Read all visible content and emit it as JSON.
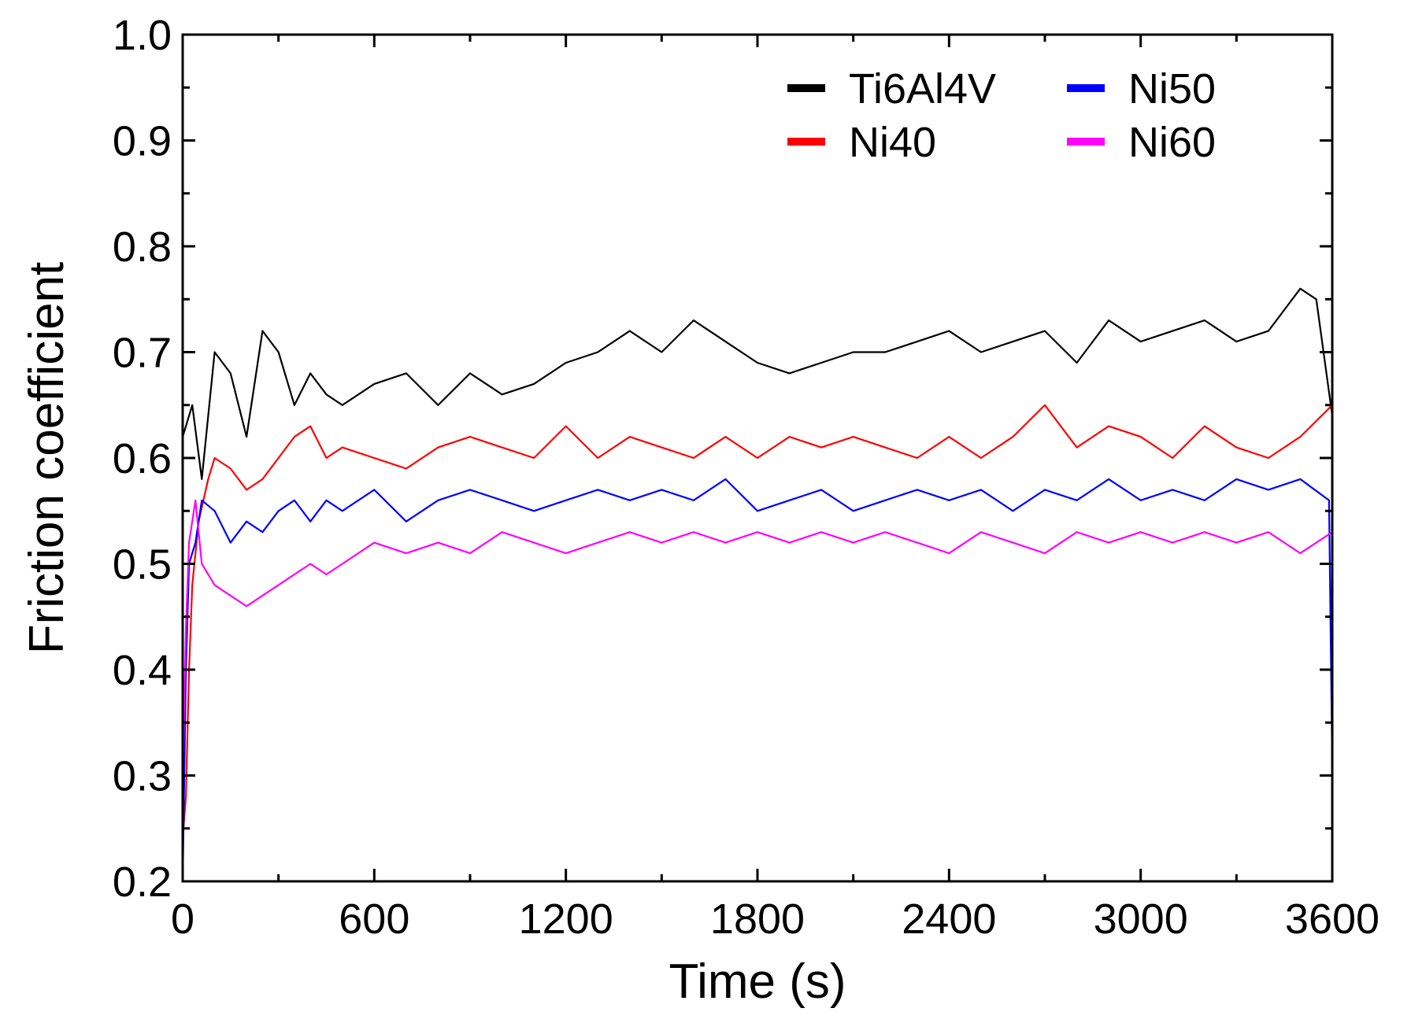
{
  "chart_data": {
    "type": "line",
    "title": "",
    "xlabel": "Time (s)",
    "ylabel": "Friction coefficient",
    "xlim": [
      0,
      3600
    ],
    "ylim": [
      0.2,
      1.0
    ],
    "xticks": [
      0,
      600,
      1200,
      1800,
      2400,
      3000,
      3600
    ],
    "xtick_labels": [
      "0",
      "600",
      "1200",
      "1800",
      "2400",
      "3000",
      "3600"
    ],
    "yticks": [
      0.2,
      0.3,
      0.4,
      0.5,
      0.6,
      0.7,
      0.8,
      0.9,
      1.0
    ],
    "ytick_labels": [
      "0.2",
      "0.3",
      "0.4",
      "0.5",
      "0.6",
      "0.7",
      "0.8",
      "0.9",
      "1.0"
    ],
    "grid": false,
    "legend_position": "top-right",
    "series": [
      {
        "name": "Ti6Al4V",
        "color": "#000000",
        "x": [
          0,
          30,
          60,
          100,
          150,
          200,
          250,
          300,
          350,
          400,
          450,
          500,
          600,
          700,
          800,
          900,
          1000,
          1100,
          1200,
          1300,
          1400,
          1500,
          1600,
          1700,
          1800,
          1900,
          2000,
          2100,
          2200,
          2300,
          2400,
          2500,
          2600,
          2700,
          2800,
          2900,
          3000,
          3100,
          3200,
          3300,
          3400,
          3500,
          3550,
          3600
        ],
        "y": [
          0.62,
          0.65,
          0.58,
          0.7,
          0.68,
          0.62,
          0.72,
          0.7,
          0.65,
          0.68,
          0.66,
          0.65,
          0.67,
          0.68,
          0.65,
          0.68,
          0.66,
          0.67,
          0.69,
          0.7,
          0.72,
          0.7,
          0.73,
          0.71,
          0.69,
          0.68,
          0.69,
          0.7,
          0.7,
          0.71,
          0.72,
          0.7,
          0.71,
          0.72,
          0.69,
          0.73,
          0.71,
          0.72,
          0.73,
          0.71,
          0.72,
          0.76,
          0.75,
          0.64
        ]
      },
      {
        "name": "Ni40",
        "color": "#ff0000",
        "x": [
          0,
          10,
          20,
          30,
          50,
          80,
          100,
          150,
          200,
          250,
          300,
          350,
          400,
          450,
          500,
          600,
          700,
          800,
          900,
          1000,
          1100,
          1200,
          1300,
          1400,
          1500,
          1600,
          1700,
          1800,
          1900,
          2000,
          2100,
          2200,
          2300,
          2400,
          2500,
          2600,
          2700,
          2800,
          2900,
          3000,
          3100,
          3200,
          3300,
          3400,
          3500,
          3600
        ],
        "y": [
          0.24,
          0.28,
          0.4,
          0.48,
          0.54,
          0.58,
          0.6,
          0.59,
          0.57,
          0.58,
          0.6,
          0.62,
          0.63,
          0.6,
          0.61,
          0.6,
          0.59,
          0.61,
          0.62,
          0.61,
          0.6,
          0.63,
          0.6,
          0.62,
          0.61,
          0.6,
          0.62,
          0.6,
          0.62,
          0.61,
          0.62,
          0.61,
          0.6,
          0.62,
          0.6,
          0.62,
          0.65,
          0.61,
          0.63,
          0.62,
          0.6,
          0.63,
          0.61,
          0.6,
          0.62,
          0.65
        ]
      },
      {
        "name": "Ni50",
        "color": "#0000ff",
        "x": [
          0,
          10,
          20,
          40,
          60,
          100,
          150,
          200,
          250,
          300,
          350,
          400,
          450,
          500,
          600,
          700,
          800,
          900,
          1000,
          1100,
          1200,
          1300,
          1400,
          1500,
          1600,
          1700,
          1800,
          1900,
          2000,
          2100,
          2200,
          2300,
          2400,
          2500,
          2600,
          2700,
          2800,
          2900,
          3000,
          3100,
          3200,
          3300,
          3400,
          3500,
          3590,
          3600
        ],
        "y": [
          0.2,
          0.4,
          0.5,
          0.52,
          0.56,
          0.55,
          0.52,
          0.54,
          0.53,
          0.55,
          0.56,
          0.54,
          0.56,
          0.55,
          0.57,
          0.54,
          0.56,
          0.57,
          0.56,
          0.55,
          0.56,
          0.57,
          0.56,
          0.57,
          0.56,
          0.58,
          0.55,
          0.56,
          0.57,
          0.55,
          0.56,
          0.57,
          0.56,
          0.57,
          0.55,
          0.57,
          0.56,
          0.58,
          0.56,
          0.57,
          0.56,
          0.58,
          0.57,
          0.58,
          0.56,
          0.31
        ]
      },
      {
        "name": "Ni60",
        "color": "#ff00ff",
        "x": [
          0,
          10,
          20,
          40,
          60,
          100,
          150,
          200,
          250,
          300,
          350,
          400,
          450,
          500,
          600,
          700,
          800,
          900,
          1000,
          1100,
          1200,
          1300,
          1400,
          1500,
          1600,
          1700,
          1800,
          1900,
          2000,
          2100,
          2200,
          2300,
          2400,
          2500,
          2600,
          2700,
          2800,
          2900,
          3000,
          3100,
          3200,
          3300,
          3400,
          3500,
          3600
        ],
        "y": [
          0.3,
          0.44,
          0.52,
          0.56,
          0.5,
          0.48,
          0.47,
          0.46,
          0.47,
          0.48,
          0.49,
          0.5,
          0.49,
          0.5,
          0.52,
          0.51,
          0.52,
          0.51,
          0.53,
          0.52,
          0.51,
          0.52,
          0.53,
          0.52,
          0.53,
          0.52,
          0.53,
          0.52,
          0.53,
          0.52,
          0.53,
          0.52,
          0.51,
          0.53,
          0.52,
          0.51,
          0.53,
          0.52,
          0.53,
          0.52,
          0.53,
          0.52,
          0.53,
          0.51,
          0.53
        ]
      }
    ]
  }
}
